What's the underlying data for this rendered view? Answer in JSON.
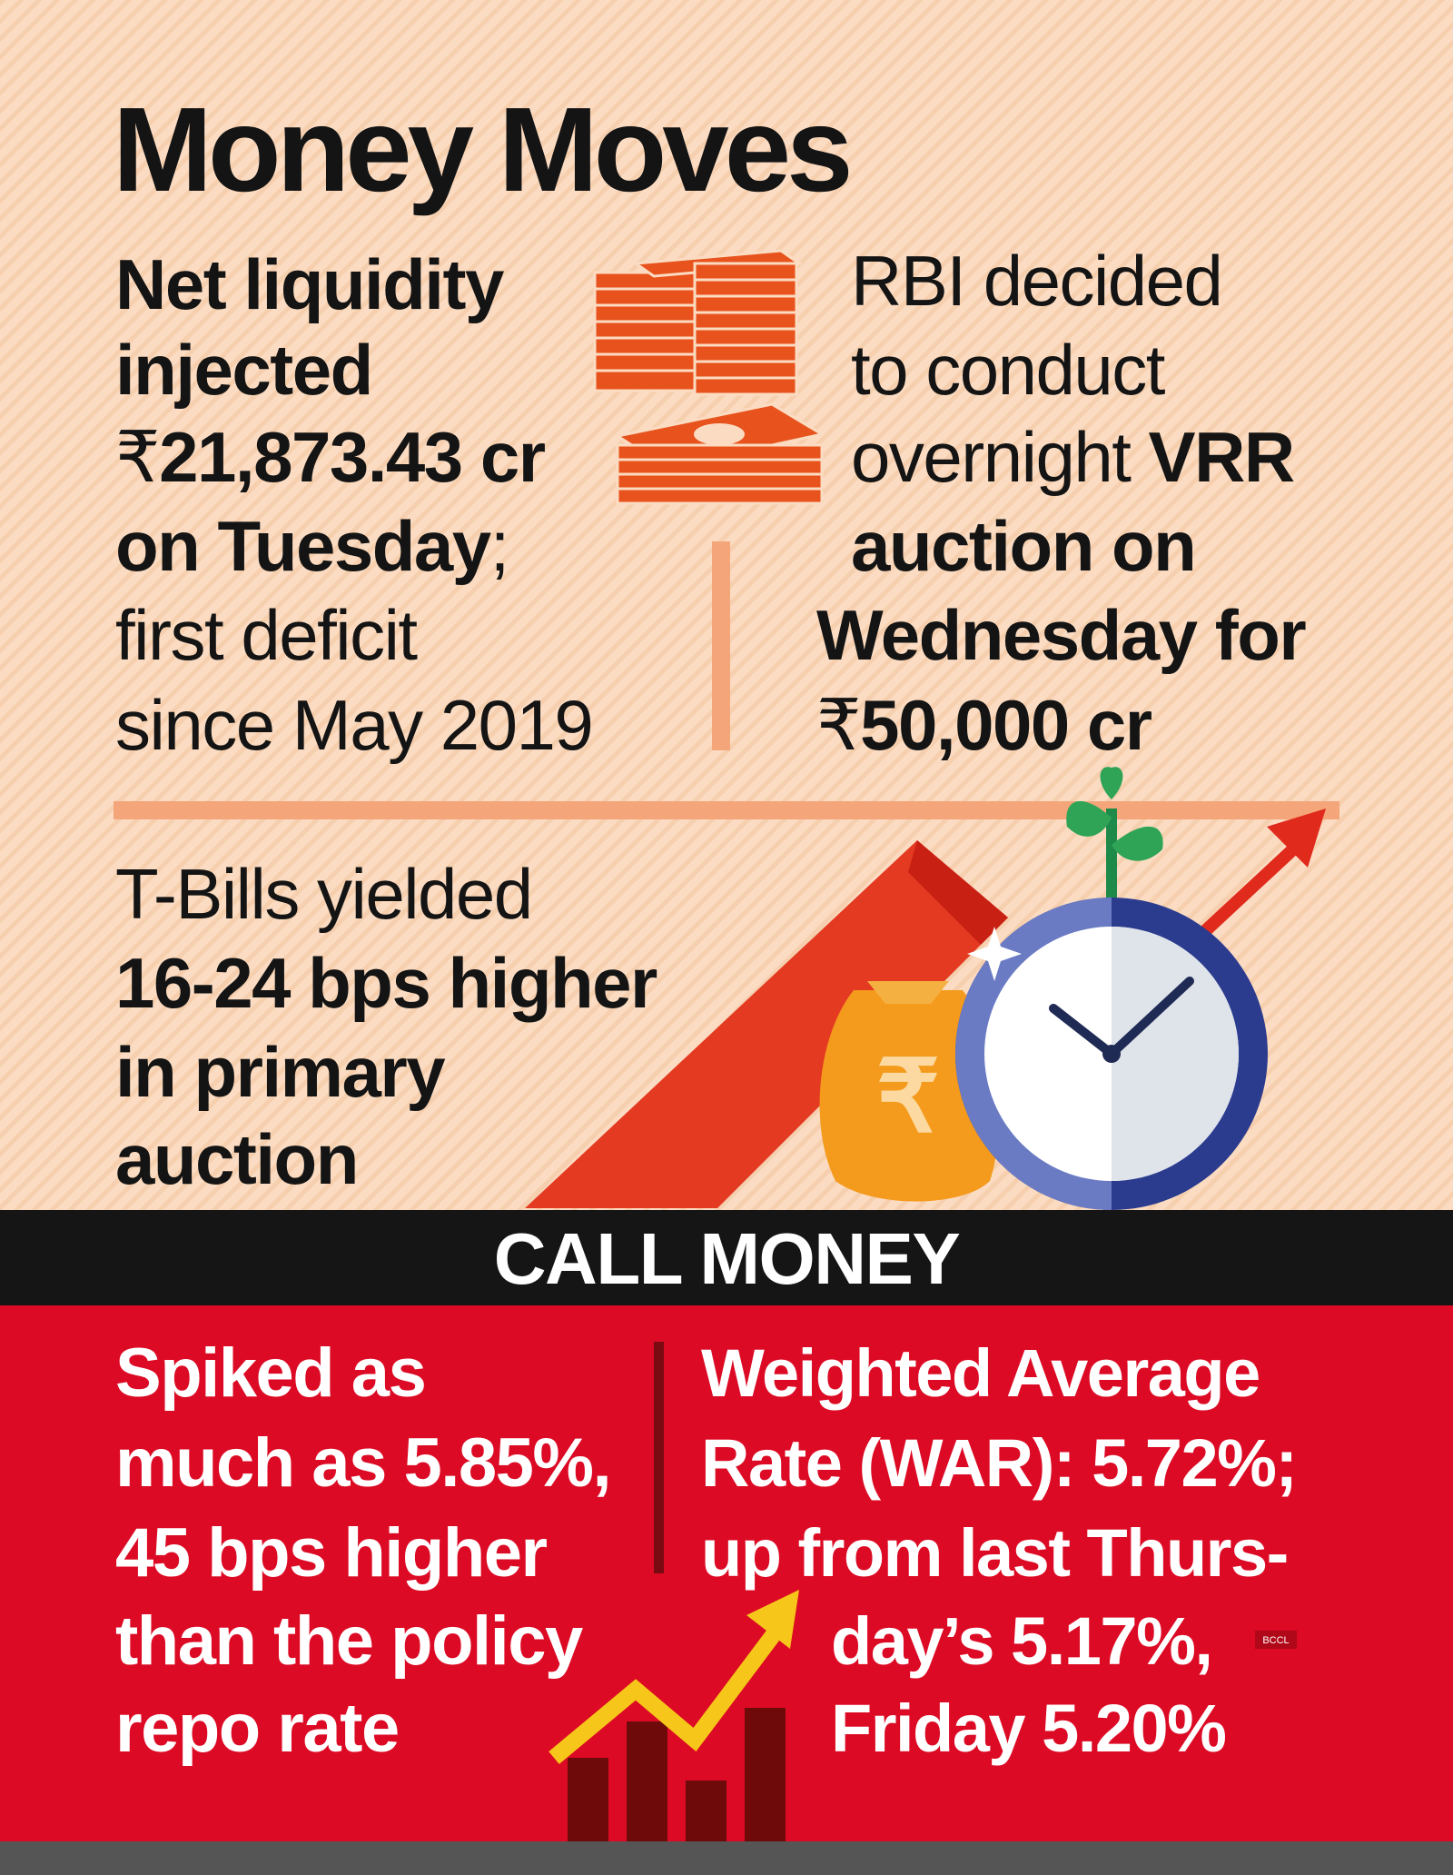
{
  "title": "Money Moves",
  "liquidity": {
    "lines": [
      [
        "Net liquidity"
      ],
      [
        "injected"
      ],
      [
        "₹",
        "21,873.43 cr"
      ],
      [
        "on Tuesday",
        ";"
      ],
      [
        "first deficit"
      ],
      [
        "since May 2019"
      ]
    ]
  },
  "vrr": {
    "lines": [
      [
        "RBI decided"
      ],
      [
        "to conduct"
      ],
      [
        "overnight ",
        "VRR"
      ],
      [
        "auction on"
      ],
      [
        "Wednesday for"
      ],
      [
        "₹",
        "50,000 cr"
      ]
    ]
  },
  "tbills": {
    "lines": [
      [
        "T-Bills yielded"
      ],
      [
        "16-24 bps higher"
      ],
      [
        "in primary"
      ],
      [
        "auction"
      ]
    ]
  },
  "banner": "CALL MONEY",
  "call_left": {
    "lines": [
      "Spiked as",
      "much as 5.85%,",
      "45 bps higher",
      "than the policy",
      "repo rate"
    ]
  },
  "call_right": {
    "lines": [
      "Weighted Average",
      "Rate (WAR): 5.72%;",
      "up from last Thurs-",
      "day’s 5.17%,",
      "Friday 5.20%"
    ]
  },
  "credit": "BCCL"
}
